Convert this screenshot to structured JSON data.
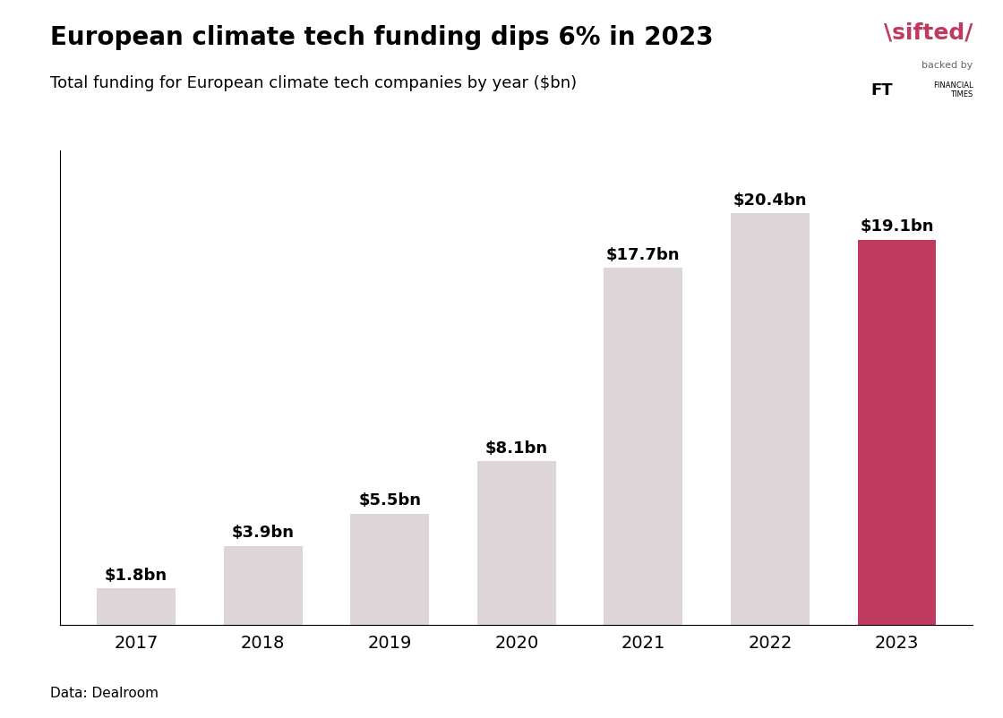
{
  "chart_data": {
    "type": "bar",
    "title": "European climate tech funding dips 6% in 2023",
    "subtitle": "Total funding for European climate tech companies by year ($bn)",
    "source": "Data: Dealroom",
    "annotations": [
      "\\sifted/",
      "backed by",
      "FT",
      "FINANCIAL\nTIMES"
    ],
    "categories": [
      "2017",
      "2018",
      "2019",
      "2020",
      "2021",
      "2022",
      "2023"
    ],
    "values": [
      1.8,
      3.9,
      5.5,
      8.1,
      17.7,
      20.4,
      19.1
    ],
    "value_labels": [
      "$1.8bn",
      "$3.9bn",
      "$5.5bn",
      "$8.1bn",
      "$17.7bn",
      "$20.4bn",
      "$19.1bn"
    ],
    "colors": [
      "#ddd5d8",
      "#ddd5d8",
      "#ddd5d8",
      "#ddd5d8",
      "#ddd5d8",
      "#ddd5d8",
      "#c0395e"
    ],
    "data_labels": true,
    "ylim": [
      0,
      23.5
    ],
    "tick_labels": "x",
    "grid": false
  }
}
